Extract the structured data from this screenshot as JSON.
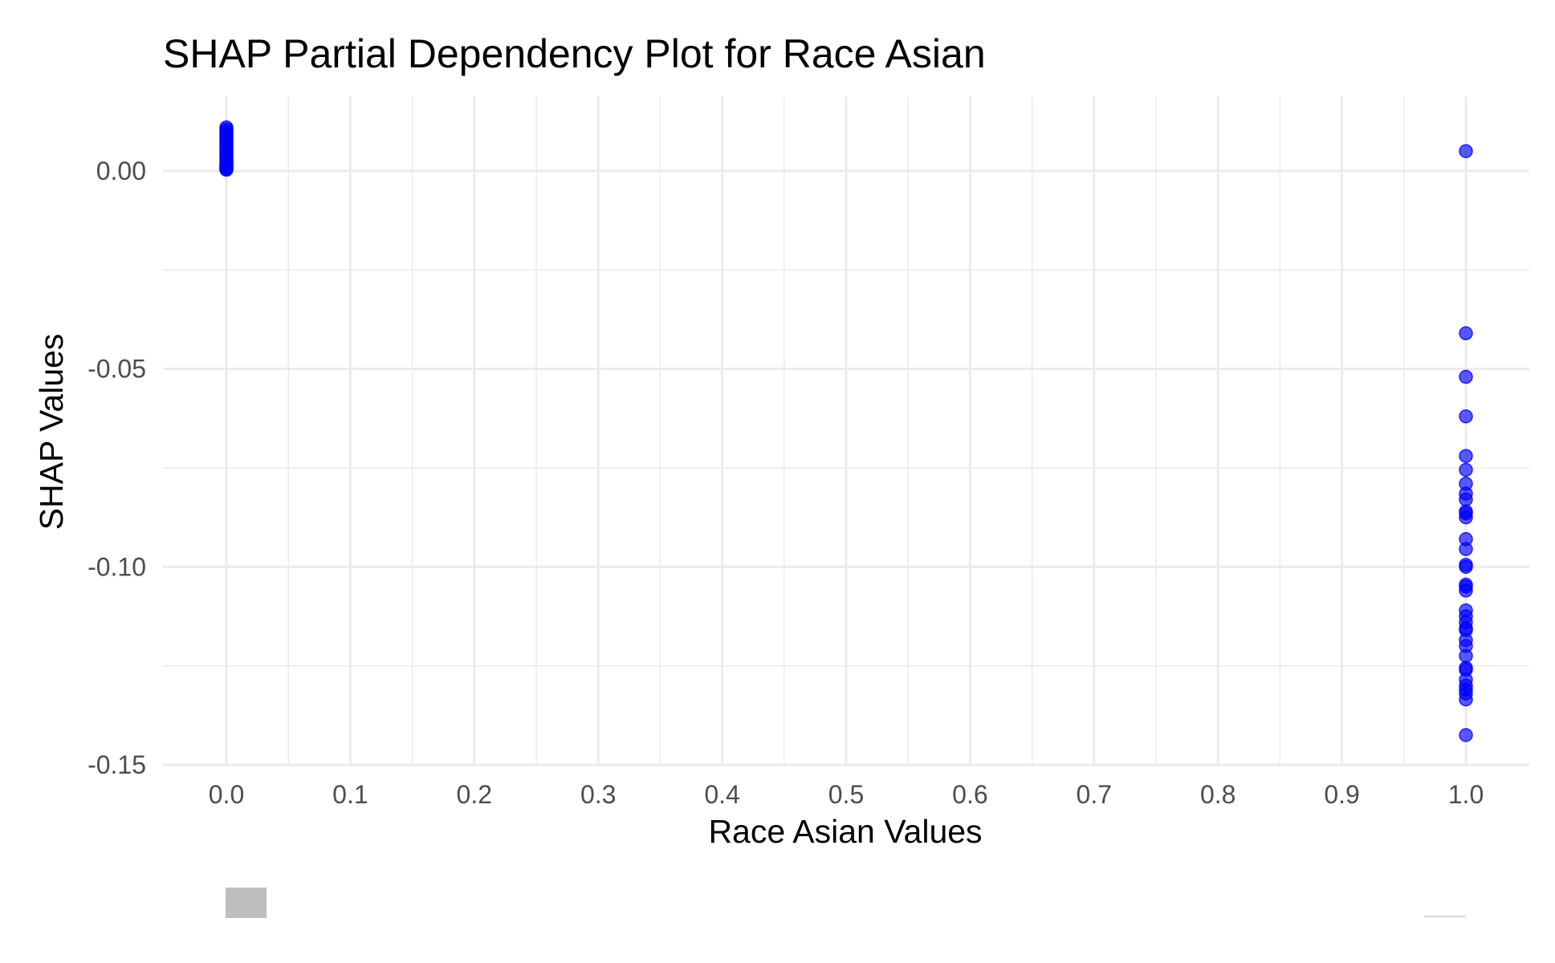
{
  "chart_data": {
    "type": "scatter",
    "title": "SHAP Partial Dependency Plot for Race Asian",
    "xlabel": "Race Asian Values",
    "ylabel": "SHAP Values",
    "xlim": [
      -0.05,
      1.05
    ],
    "ylim": [
      -0.15,
      0.019
    ],
    "x_ticks": [
      0.0,
      0.1,
      0.2,
      0.3,
      0.4,
      0.5,
      0.6,
      0.7,
      0.8,
      0.9,
      1.0
    ],
    "x_tick_labels": [
      "0.0",
      "0.1",
      "0.2",
      "0.3",
      "0.4",
      "0.5",
      "0.6",
      "0.7",
      "0.8",
      "0.9",
      "1.0"
    ],
    "y_ticks": [
      0.0,
      -0.05,
      -0.1,
      -0.15
    ],
    "y_tick_labels": [
      "0.00",
      "-0.05",
      "-0.10",
      "-0.15"
    ],
    "grid": true,
    "point_color": "#0000ff",
    "point_opacity": 0.65,
    "series": [
      {
        "x": [
          0,
          0,
          0,
          0,
          0,
          0,
          0,
          0,
          0,
          0,
          0,
          0,
          0,
          0,
          0,
          0,
          0,
          0,
          0,
          0,
          0,
          0,
          0,
          0,
          0,
          1,
          1,
          1,
          1,
          1,
          1,
          1,
          1,
          1,
          1,
          1,
          1,
          1,
          1,
          1,
          1,
          1,
          1,
          1,
          1,
          1,
          1,
          1,
          1,
          1,
          1,
          1,
          1,
          1,
          1,
          1,
          1,
          1,
          1,
          1
        ],
        "y": [
          0.011,
          0.0105,
          0.01,
          0.0095,
          0.009,
          0.0085,
          0.008,
          0.0075,
          0.007,
          0.0065,
          0.006,
          0.0055,
          0.005,
          0.0045,
          0.004,
          0.0035,
          0.003,
          0.0025,
          0.002,
          0.0015,
          0.001,
          0.0005,
          0.0003,
          0.0008,
          0.0012,
          0.005,
          -0.041,
          -0.052,
          -0.062,
          -0.072,
          -0.0755,
          -0.079,
          -0.0815,
          -0.083,
          -0.086,
          -0.0865,
          -0.0875,
          -0.093,
          -0.0955,
          -0.0995,
          -0.1,
          -0.1045,
          -0.105,
          -0.106,
          -0.111,
          -0.1125,
          -0.114,
          -0.1155,
          -0.116,
          -0.1185,
          -0.12,
          -0.1225,
          -0.1255,
          -0.126,
          -0.1285,
          -0.13,
          -0.131,
          -0.132,
          -0.1335,
          -0.1425
        ]
      }
    ],
    "legend": {
      "items": [
        {
          "label": "",
          "swatch_color": "#bebebe"
        },
        {
          "label": "",
          "swatch_color": "#d9d9d9"
        }
      ]
    }
  }
}
